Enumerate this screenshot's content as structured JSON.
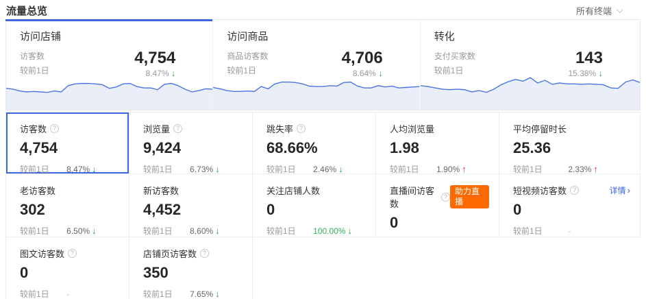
{
  "header": {
    "title": "流量总览",
    "terminal_filter": "所有终端"
  },
  "accent_color": "#3d66e0",
  "badge_color": "#ff6a00",
  "down_color": "#23a24d",
  "up_color": "#e3312b",
  "cards": [
    {
      "title": "访问店铺",
      "metric_label": "访客数",
      "value": "4,754",
      "prev_label": "较前1日",
      "change": "8.47%",
      "direction": "down",
      "active": true,
      "sparkline": [
        16,
        17,
        19,
        20,
        19.5,
        20,
        20.5,
        19,
        20,
        13,
        11,
        10.5,
        10.5,
        11,
        12,
        16,
        14.5,
        11,
        10.5,
        14,
        15.5,
        15.5,
        17.5,
        11.5,
        10.5,
        13,
        17,
        20,
        18.5,
        16.5,
        17
      ]
    },
    {
      "title": "访问商品",
      "metric_label": "商品访客数",
      "value": "4,706",
      "prev_label": "较前1日",
      "change": "8.64%",
      "direction": "down",
      "sparkline": [
        15,
        16.5,
        18.5,
        19.5,
        19.5,
        19,
        19.5,
        14,
        16.5,
        11,
        9,
        9,
        9.5,
        11,
        13.5,
        14,
        14,
        13,
        13.5,
        9.5,
        9,
        13.5,
        15.5,
        15.5,
        13,
        14.5,
        13.5,
        15.5,
        15,
        14.5,
        14
      ]
    },
    {
      "title": "转化",
      "metric_label": "支付买家数",
      "value": "143",
      "prev_label": "较前1日",
      "change": "15.38%",
      "direction": "down",
      "sparkline": [
        13,
        14,
        15.5,
        17,
        17.5,
        17,
        17.5,
        20,
        18.5,
        20.5,
        17,
        12,
        8.5,
        6,
        8,
        4,
        10,
        7,
        11.5,
        10,
        11,
        11,
        11.5,
        11,
        11.5,
        12,
        15.5,
        16,
        9,
        6.5,
        9.5
      ]
    }
  ],
  "grid": {
    "prev_label": "较前1日",
    "cells": [
      {
        "label": "访客数",
        "help": true,
        "value": "4,754",
        "change": "8.47%",
        "direction": "down",
        "selected": true
      },
      {
        "label": "浏览量",
        "help": true,
        "value": "9,424",
        "change": "6.73%",
        "direction": "down"
      },
      {
        "label": "跳失率",
        "help": true,
        "value": "68.66%",
        "change": "2.46%",
        "direction": "down"
      },
      {
        "label": "人均浏览量",
        "help": false,
        "value": "1.98",
        "change": "1.90%",
        "direction": "up"
      },
      {
        "label": "平均停留时长",
        "help": false,
        "value": "25.36",
        "change": "2.33%",
        "direction": "up"
      },
      {
        "label": "老访客数",
        "help": false,
        "value": "302",
        "change": "6.50%",
        "direction": "down"
      },
      {
        "label": "新访客数",
        "help": false,
        "value": "4,452",
        "change": "8.60%",
        "direction": "down"
      },
      {
        "label": "关注店铺人数",
        "help": false,
        "value": "0",
        "change": "100.00%",
        "direction": "down",
        "change_green_text": true
      },
      {
        "label": "直播间访客数",
        "help": true,
        "value": "0",
        "change": "-",
        "badge": "助力直播"
      },
      {
        "label": "短视频访客数",
        "help": true,
        "value": "0",
        "change": "-",
        "link": "详情",
        "link_arrow": "›"
      },
      {
        "label": "图文访客数",
        "help": true,
        "value": "0",
        "change": "-"
      },
      {
        "label": "店铺页访客数",
        "help": true,
        "value": "350",
        "change": "7.65%",
        "direction": "down"
      },
      {
        "empty": true
      },
      {
        "empty": true
      },
      {
        "empty": true
      }
    ]
  }
}
